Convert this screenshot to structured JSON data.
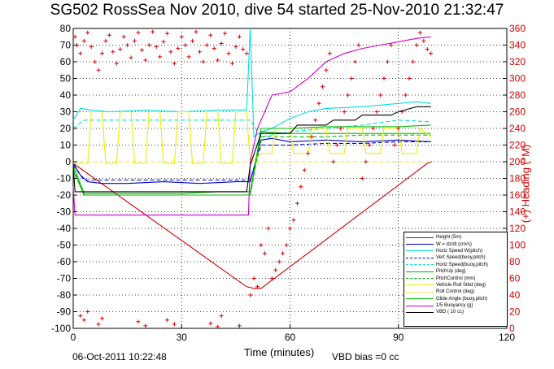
{
  "title": "SG502 RossSea Nov 2010, dive 54 started 25-Nov-2010 21:32:47",
  "footer": {
    "date": "06-Oct-2011 10:22:48",
    "vbd_bias": "VBD bias =0 cc"
  },
  "chart_data": {
    "type": "line",
    "title": "SG502 RossSea Nov 2010, dive 54 started 25-Nov-2010 21:32:47",
    "xlabel": "Time (minutes)",
    "ylabel": "",
    "ylabel_right": "(+) Heading (°M)",
    "xlim": [
      0,
      120
    ],
    "ylim": [
      -100,
      80
    ],
    "ylim_right": [
      0,
      360
    ],
    "xticks": [
      0,
      30,
      60,
      90,
      120
    ],
    "yticks": [
      -100,
      -90,
      -80,
      -70,
      -60,
      -50,
      -40,
      -30,
      -20,
      -10,
      0,
      10,
      20,
      30,
      40,
      50,
      60,
      70,
      80
    ],
    "yticks_right": [
      0,
      20,
      40,
      60,
      80,
      100,
      120,
      140,
      160,
      180,
      200,
      220,
      240,
      260,
      280,
      300,
      320,
      340,
      360
    ],
    "grid": true,
    "legend_position": "bottom-right",
    "series": [
      {
        "name": "Height (5m)",
        "color": "#d00000",
        "style": "solid",
        "x": [
          0,
          48,
          50,
          52,
          98,
          99
        ],
        "y": [
          -1,
          -75,
          -76,
          -76,
          -1,
          0
        ]
      },
      {
        "name": "W = dz/dt (cm/s)",
        "color": "#0000cc",
        "style": "solid",
        "x": [
          0,
          2,
          4,
          8,
          15,
          25,
          35,
          45,
          49,
          52,
          55,
          60,
          70,
          80,
          90,
          99
        ],
        "y": [
          -1,
          -8,
          -12,
          -13,
          -13,
          -12,
          -13,
          -12,
          -12,
          13,
          14,
          12,
          13,
          12,
          13,
          12
        ]
      },
      {
        "name": "Horiz Speed W(pitch)",
        "color": "#00dddd",
        "style": "solid",
        "x": [
          0,
          2,
          5,
          10,
          20,
          30,
          40,
          48,
          49,
          50,
          52,
          55,
          60,
          65,
          70,
          80,
          90,
          95,
          99
        ],
        "y": [
          25,
          32,
          31,
          30,
          31,
          30,
          31,
          31,
          80,
          15,
          18,
          20,
          26,
          30,
          32,
          33,
          35,
          36,
          35
        ]
      },
      {
        "name": "Vert Speed(buoy,pitch)",
        "color": "#0000cc",
        "style": "dashed",
        "x": [
          0,
          3,
          10,
          20,
          30,
          40,
          49,
          52,
          60,
          70,
          80,
          90,
          99
        ],
        "y": [
          -2,
          -11,
          -11,
          -11,
          -11,
          -11,
          -11,
          10,
          10,
          11,
          11,
          12,
          12
        ]
      },
      {
        "name": "Horiz Speed(buoy,pitch)",
        "color": "#00dddd",
        "style": "dashed",
        "x": [
          0,
          3,
          10,
          20,
          30,
          40,
          49,
          52,
          60,
          70,
          80,
          90,
          99
        ],
        "y": [
          20,
          25,
          25,
          25,
          25,
          25,
          25,
          15,
          18,
          20,
          22,
          25,
          24
        ]
      },
      {
        "name": "PitchUp (deg)",
        "color": "#00bb00",
        "style": "solid",
        "x": [
          0,
          3,
          10,
          20,
          30,
          40,
          49,
          52,
          60,
          70,
          80,
          90,
          99
        ],
        "y": [
          -2,
          -19,
          -19,
          -19,
          -19,
          -18,
          -18,
          18,
          17,
          17,
          17,
          17,
          17
        ]
      },
      {
        "name": "PitchControl (mm)",
        "color": "#00bb00",
        "style": "dashed",
        "x": [
          0,
          3,
          10,
          20,
          30,
          40,
          49,
          52,
          60,
          70,
          80,
          90,
          99
        ],
        "y": [
          -4,
          -20,
          -20,
          -20,
          -20,
          -20,
          -20,
          15,
          15,
          15,
          16,
          16,
          16
        ]
      },
      {
        "name": "Vehicle Roll Stbd (deg)",
        "color": "#eeee00",
        "style": "solid",
        "x": [
          0,
          4,
          5,
          8,
          9,
          12,
          13,
          16,
          17,
          20,
          21,
          24,
          25,
          28,
          29,
          32,
          33,
          36,
          37,
          40,
          41,
          44,
          45,
          48,
          49,
          52,
          55,
          56,
          60,
          61,
          65,
          66,
          70,
          71,
          75,
          76,
          80,
          81,
          85,
          86,
          90,
          91,
          95,
          96,
          99
        ],
        "y": [
          -1,
          -1,
          30,
          30,
          -1,
          -1,
          30,
          30,
          -1,
          -1,
          30,
          30,
          -1,
          -1,
          30,
          30,
          -1,
          -1,
          30,
          30,
          -1,
          -1,
          30,
          30,
          -1,
          5,
          5,
          20,
          20,
          5,
          5,
          20,
          20,
          5,
          5,
          20,
          20,
          5,
          5,
          20,
          20,
          5,
          5,
          20,
          15
        ]
      },
      {
        "name": "Roll Control (deg)",
        "color": "#eeee00",
        "style": "dashed",
        "x": [
          0,
          3,
          10,
          20,
          30,
          40,
          49,
          52,
          60,
          70,
          80,
          90,
          99
        ],
        "y": [
          0,
          0,
          0,
          0,
          0,
          0,
          0,
          0,
          0,
          0,
          0,
          0,
          0
        ]
      },
      {
        "name": "Glide Angle (buoy,pitch)",
        "color": "#00bb00",
        "style": "solid",
        "x": [
          0,
          3,
          10,
          20,
          30,
          40,
          49,
          52,
          60,
          70,
          80,
          90,
          99
        ],
        "y": [
          -5,
          -20,
          -20,
          -20,
          -20,
          -20,
          -20,
          20,
          20,
          21,
          21,
          21,
          22
        ]
      },
      {
        "name": "1/5 Buoyancy (g)",
        "color": "#cc00cc",
        "style": "solid",
        "x": [
          0,
          0.5,
          48.5,
          49,
          51,
          55,
          60,
          65,
          70,
          75,
          80,
          85,
          90,
          95,
          99
        ],
        "y": [
          -15,
          -32,
          -32,
          0,
          20,
          40,
          42,
          50,
          60,
          65,
          68,
          70,
          72,
          74,
          75
        ]
      },
      {
        "name": "VBD ( 10 cc)",
        "color": "#000000",
        "style": "solid",
        "x": [
          0,
          0.5,
          48,
          49,
          52,
          60,
          62,
          70,
          72,
          78,
          80,
          88,
          90,
          95,
          99
        ],
        "y": [
          -2,
          -18,
          -18,
          -2,
          17,
          17,
          22,
          22,
          25,
          25,
          28,
          28,
          30,
          33,
          33
        ]
      }
    ],
    "heading_series": {
      "name": "Heading",
      "color": "#dd0000",
      "marker": "+",
      "axis": "right",
      "points": [
        [
          0.5,
          350
        ],
        [
          1,
          340
        ],
        [
          2,
          330
        ],
        [
          3,
          345
        ],
        [
          4,
          355
        ],
        [
          5,
          338
        ],
        [
          6,
          320
        ],
        [
          7,
          310
        ],
        [
          8,
          330
        ],
        [
          9,
          345
        ],
        [
          10,
          352
        ],
        [
          11,
          332
        ],
        [
          12,
          318
        ],
        [
          13,
          335
        ],
        [
          14,
          350
        ],
        [
          15,
          340
        ],
        [
          16,
          325
        ],
        [
          17,
          345
        ],
        [
          18,
          355
        ],
        [
          19,
          334
        ],
        [
          20,
          322
        ],
        [
          21,
          340
        ],
        [
          22,
          356
        ],
        [
          23,
          338
        ],
        [
          24,
          326
        ],
        [
          25,
          344
        ],
        [
          26,
          354
        ],
        [
          27,
          332
        ],
        [
          28,
          318
        ],
        [
          29,
          336
        ],
        [
          30,
          350
        ],
        [
          31,
          340
        ],
        [
          32,
          326
        ],
        [
          33,
          345
        ],
        [
          34,
          356
        ],
        [
          35,
          332
        ],
        [
          36,
          320
        ],
        [
          37,
          340
        ],
        [
          38,
          352
        ],
        [
          39,
          336
        ],
        [
          40,
          322
        ],
        [
          41,
          342
        ],
        [
          42,
          354
        ],
        [
          43,
          330
        ],
        [
          44,
          318
        ],
        [
          45,
          338
        ],
        [
          46,
          350
        ],
        [
          47,
          335
        ],
        [
          48,
          330
        ],
        [
          49,
          40
        ],
        [
          50,
          60
        ],
        [
          51,
          50
        ],
        [
          52,
          100
        ],
        [
          53,
          90
        ],
        [
          54,
          120
        ],
        [
          55,
          60
        ],
        [
          56,
          70
        ],
        [
          57,
          80
        ],
        [
          58,
          90
        ],
        [
          59,
          100
        ],
        [
          60,
          120
        ],
        [
          61,
          130
        ],
        [
          62,
          150
        ],
        [
          63,
          170
        ],
        [
          64,
          190
        ],
        [
          65,
          210
        ],
        [
          66,
          230
        ],
        [
          67,
          250
        ],
        [
          68,
          270
        ],
        [
          69,
          290
        ],
        [
          70,
          310
        ],
        [
          71,
          330
        ],
        [
          72,
          200
        ],
        [
          73,
          220
        ],
        [
          74,
          240
        ],
        [
          75,
          260
        ],
        [
          76,
          280
        ],
        [
          77,
          300
        ],
        [
          78,
          320
        ],
        [
          79,
          340
        ],
        [
          80,
          180
        ],
        [
          81,
          200
        ],
        [
          82,
          220
        ],
        [
          83,
          240
        ],
        [
          84,
          260
        ],
        [
          85,
          280
        ],
        [
          86,
          300
        ],
        [
          87,
          320
        ],
        [
          88,
          340
        ],
        [
          89,
          220
        ],
        [
          90,
          240
        ],
        [
          91,
          260
        ],
        [
          92,
          280
        ],
        [
          93,
          300
        ],
        [
          94,
          320
        ],
        [
          95,
          340
        ],
        [
          96,
          355
        ],
        [
          97,
          345
        ],
        [
          98,
          335
        ],
        [
          99,
          330
        ],
        [
          2,
          15
        ],
        [
          3,
          10
        ],
        [
          4,
          20
        ],
        [
          7,
          5
        ],
        [
          8,
          12
        ],
        [
          18,
          8
        ],
        [
          20,
          3
        ],
        [
          26,
          10
        ],
        [
          28,
          5
        ],
        [
          38,
          6
        ],
        [
          40,
          2
        ],
        [
          41,
          15
        ],
        [
          46,
          3
        ]
      ]
    }
  }
}
